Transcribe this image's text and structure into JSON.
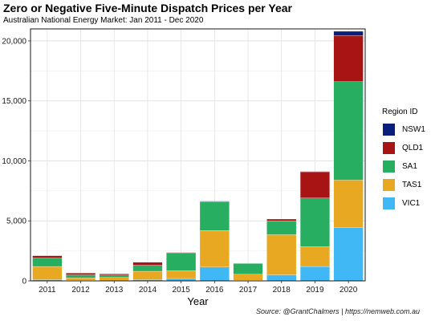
{
  "chart_data": {
    "type": "bar",
    "stacked": true,
    "title": "Zero or Negative Five-Minute Dispatch Prices per Year",
    "subtitle": "Australian National Energy Market: Jan 2011 - Dec 2020",
    "xlabel": "Year",
    "ylabel": "",
    "caption": "Source: @GrantChalmers | https://nemweb.com.au",
    "categories": [
      "2011",
      "2012",
      "2013",
      "2014",
      "2015",
      "2016",
      "2017",
      "2018",
      "2019",
      "2020"
    ],
    "ylim": [
      0,
      21000
    ],
    "yticks": [
      0,
      5000,
      10000,
      15000,
      20000
    ],
    "ytick_labels": [
      "0",
      "5,000",
      "10,000",
      "15,000",
      "20,000"
    ],
    "grid": true,
    "legend": {
      "title": "Region ID",
      "position": "right"
    },
    "series": [
      {
        "name": "VIC1",
        "color": "#3fb8f5",
        "values": [
          100,
          50,
          30,
          100,
          200,
          1150,
          50,
          500,
          1200,
          4450
        ]
      },
      {
        "name": "TAS1",
        "color": "#e8a822",
        "values": [
          1100,
          200,
          250,
          700,
          650,
          3050,
          500,
          3350,
          1650,
          3950
        ]
      },
      {
        "name": "SA1",
        "color": "#27ae60",
        "values": [
          700,
          250,
          200,
          500,
          1500,
          2400,
          900,
          1150,
          4050,
          8200
        ]
      },
      {
        "name": "QLD1",
        "color": "#a81414",
        "values": [
          200,
          150,
          100,
          250,
          20,
          30,
          0,
          150,
          2200,
          3850
        ]
      },
      {
        "name": "NSW1",
        "color": "#0a1f7a",
        "values": [
          0,
          0,
          0,
          0,
          0,
          20,
          0,
          0,
          20,
          350
        ]
      }
    ],
    "legend_order": [
      "NSW1",
      "QLD1",
      "SA1",
      "TAS1",
      "VIC1"
    ]
  }
}
